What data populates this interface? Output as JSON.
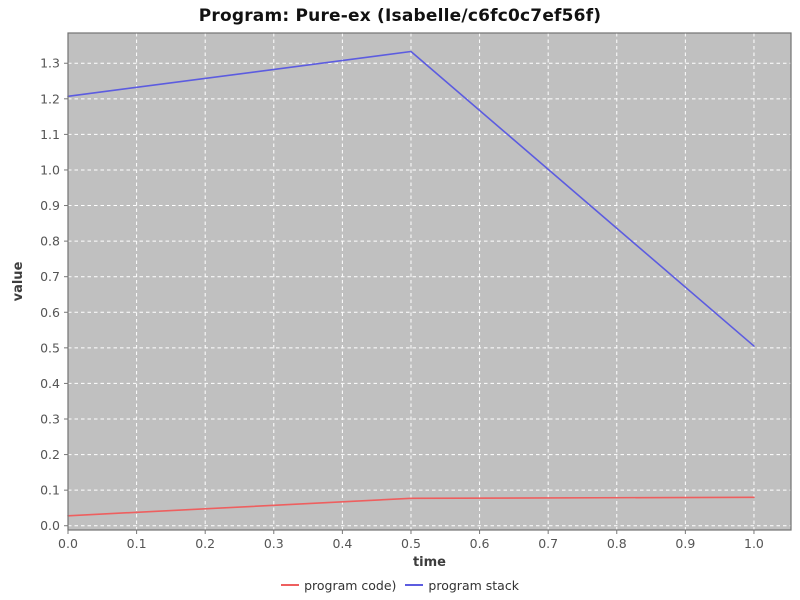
{
  "chart_data": {
    "type": "line",
    "title": "Program: Pure-ex (Isabelle/c6fc0c7ef56f)",
    "xlabel": "time",
    "ylabel": "value",
    "xlim": [
      0.0,
      1.054
    ],
    "ylim": [
      -0.012,
      1.385
    ],
    "xticks": [
      0.0,
      0.1,
      0.2,
      0.3,
      0.4,
      0.5,
      0.6,
      0.7,
      0.8,
      0.9,
      1.0
    ],
    "yticks": [
      0.0,
      0.1,
      0.2,
      0.3,
      0.4,
      0.5,
      0.6,
      0.7,
      0.8,
      0.9,
      1.0,
      1.1,
      1.2,
      1.3
    ],
    "grid": true,
    "legend_position": "bottom",
    "series": [
      {
        "name": "program code)",
        "color": "#ee5f5f",
        "x": [
          0.0,
          0.5,
          1.0
        ],
        "y": [
          0.028,
          0.077,
          0.08
        ]
      },
      {
        "name": "program stack",
        "color": "#5c5ce0",
        "x": [
          0.0,
          0.5,
          1.0
        ],
        "y": [
          1.207,
          1.333,
          0.505
        ]
      }
    ]
  },
  "styles": {
    "plot_bg": "#c0c0c0",
    "grid_color": "#ffffff",
    "border_color": "#737373",
    "tick_color": "#777777",
    "tick_label_color": "#555555",
    "axis_title_color": "#3d3d3d",
    "title_color": "#111111",
    "legend_text_color": "#333333"
  }
}
